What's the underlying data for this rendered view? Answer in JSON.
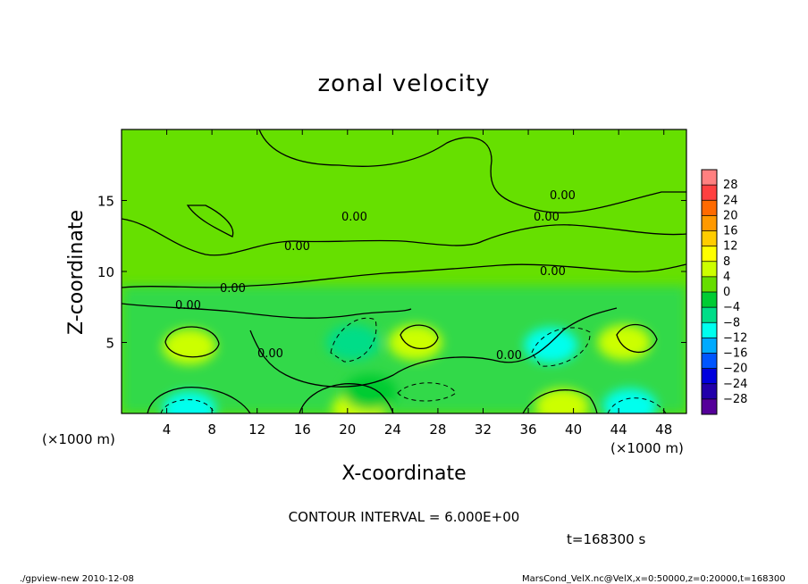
{
  "chart_data": {
    "type": "heatmap",
    "title": "zonal velocity",
    "xlabel": "X-coordinate",
    "ylabel": "Z-coordinate",
    "x_unit": "(×1000 m)",
    "z_unit": "(×1000 m)",
    "xlim": [
      0,
      50
    ],
    "ylim": [
      0,
      20
    ],
    "x_ticks": [
      4,
      8,
      12,
      16,
      20,
      24,
      28,
      32,
      36,
      40,
      44,
      48
    ],
    "y_ticks": [
      5,
      10,
      15
    ],
    "contour_label": "0.00",
    "contour_interval_text": "CONTOUR INTERVAL = 6.000E+00",
    "time_text": "t=168300 s",
    "colorbar": {
      "levels": [
        28,
        24,
        20,
        16,
        12,
        8,
        4,
        0,
        -4,
        -8,
        -12,
        -16,
        -20,
        -24,
        -28
      ],
      "colors": [
        "#ff8080",
        "#ff4040",
        "#ff6a00",
        "#ff9900",
        "#ffcc00",
        "#ffff00",
        "#ccff00",
        "#66dd00",
        "#00cc33",
        "#00dd88",
        "#00ffee",
        "#00aaff",
        "#0055ff",
        "#0000dd",
        "#2200aa",
        "#550099"
      ]
    },
    "features": [
      {
        "x": 6,
        "z": 4.7,
        "value": 6
      },
      {
        "x": 6,
        "z": 0.3,
        "value": -10
      },
      {
        "x": 21,
        "z": 0.3,
        "value": 7
      },
      {
        "x": 20.5,
        "z": 5.0,
        "value": -7
      },
      {
        "x": 22,
        "z": 1.5,
        "value": -4
      },
      {
        "x": 26,
        "z": 5.0,
        "value": 4
      },
      {
        "x": 38,
        "z": 4.8,
        "value": -9
      },
      {
        "x": 44.5,
        "z": 5.0,
        "value": 5
      },
      {
        "x": 45,
        "z": 0.5,
        "value": -9
      },
      {
        "x": 39,
        "z": 0.5,
        "value": 5
      }
    ]
  },
  "footer": {
    "left": "./gpview-new  2010-12-08",
    "right": "MarsCond_VelX.nc@VelX,x=0:50000,z=0:20000,t=168300"
  }
}
